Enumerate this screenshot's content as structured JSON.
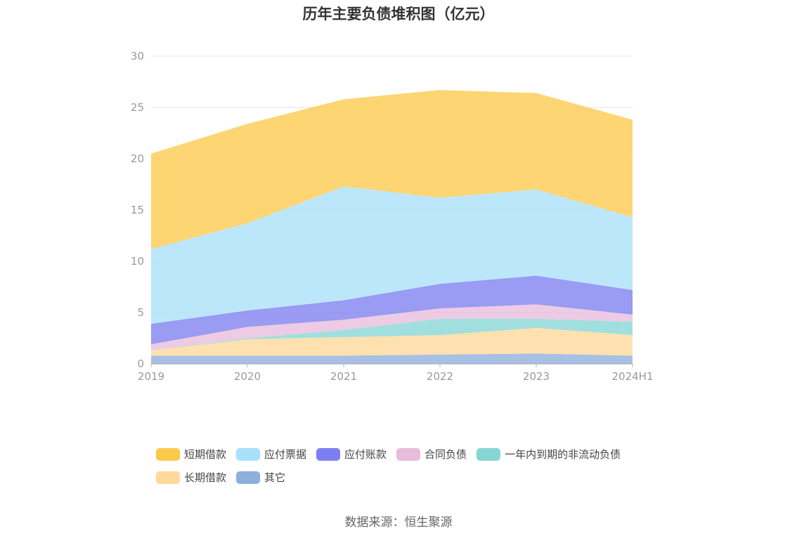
{
  "title": "历年主要负债堆积图（亿元）",
  "source": "数据来源：恒生聚源",
  "chart_data": {
    "type": "area",
    "stacked": true,
    "title": "历年主要负债堆积图（亿元）",
    "xlabel": "",
    "ylabel": "",
    "x": [
      "2019",
      "2020",
      "2021",
      "2022",
      "2023",
      "2024H1"
    ],
    "ylim": [
      0,
      30
    ],
    "yticks": [
      0,
      5,
      10,
      15,
      20,
      25,
      30
    ],
    "grid": true,
    "legend_position": "bottom",
    "series": [
      {
        "name": "其它",
        "color": "#8eaedc",
        "values": [
          0.8,
          0.8,
          0.8,
          0.9,
          1.0,
          0.8
        ]
      },
      {
        "name": "长期借款",
        "color": "#ffd99a",
        "values": [
          0.5,
          1.6,
          1.8,
          1.9,
          2.5,
          2.0
        ]
      },
      {
        "name": "一年内到期的非流动负债",
        "color": "#86d6d6",
        "values": [
          0.0,
          0.1,
          0.7,
          1.6,
          0.9,
          1.3
        ]
      },
      {
        "name": "合同负债",
        "color": "#e8bcdc",
        "values": [
          0.6,
          1.1,
          1.0,
          1.0,
          1.4,
          0.7
        ]
      },
      {
        "name": "应付账款",
        "color": "#7d7ff0",
        "values": [
          2.0,
          1.6,
          1.9,
          2.4,
          2.8,
          2.4
        ]
      },
      {
        "name": "应付票据",
        "color": "#a9e0fa",
        "values": [
          7.3,
          8.5,
          11.1,
          8.4,
          8.4,
          7.1
        ]
      },
      {
        "name": "短期借款",
        "color": "#fdc94c",
        "values": [
          9.3,
          9.7,
          8.5,
          10.5,
          9.4,
          9.5
        ]
      }
    ]
  },
  "legend": {
    "rows": [
      [
        {
          "label": "短期借款",
          "color": "#fdc94c"
        },
        {
          "label": "应付票据",
          "color": "#a9e0fa"
        },
        {
          "label": "应付账款",
          "color": "#7d7ff0"
        },
        {
          "label": "合同负债",
          "color": "#e8bcdc"
        },
        {
          "label": "一年内到期的非流动负债",
          "color": "#86d6d6"
        }
      ],
      [
        {
          "label": "长期借款",
          "color": "#ffd99a"
        },
        {
          "label": "其它",
          "color": "#8eaedc"
        }
      ]
    ]
  }
}
